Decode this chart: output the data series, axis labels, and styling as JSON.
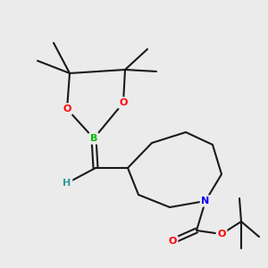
{
  "bg_color": "#ebebeb",
  "bond_color": "#1a1a1a",
  "bond_width": 1.5,
  "atom_colors": {
    "B": "#00bb00",
    "O": "#ff0000",
    "N": "#0000ee",
    "H": "#339999",
    "C": "#1a1a1a"
  },
  "figsize": [
    3.0,
    3.0
  ],
  "dpi": 100
}
